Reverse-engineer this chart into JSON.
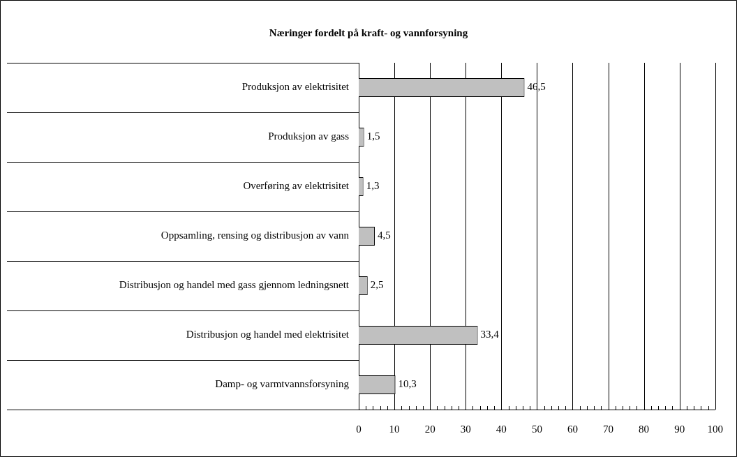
{
  "chart_data": {
    "type": "bar",
    "orientation": "horizontal",
    "title": "Næringer fordelt på kraft- og vannforsyning",
    "categories": [
      "Produksjon av elektrisitet",
      "Produksjon av gass",
      "Overføring av elektrisitet",
      "Oppsamling, rensing og distribusjon av vann",
      "Distribusjon og handel med gass gjennom ledningsnett",
      "Distribusjon og handel med elektrisitet",
      "Damp- og varmtvannsforsyning"
    ],
    "values": [
      46.5,
      1.5,
      1.3,
      4.5,
      2.5,
      33.4,
      10.3
    ],
    "value_labels": [
      "46,5",
      "1,5",
      "1,3",
      "4,5",
      "2,5",
      "33,4",
      "10,3"
    ],
    "color": "#c0c0c0",
    "xlim": [
      0,
      100
    ],
    "xticks": [
      0,
      {
        "value": 2,
        "label": null
      },
      {
        "value": 4,
        "label": null
      },
      {
        "value": 6,
        "label": null
      },
      {
        "value": 8,
        "label": null
      },
      10,
      {
        "value": 12,
        "label": null
      },
      {
        "value": 14,
        "label": null
      },
      {
        "value": 16,
        "label": null
      },
      {
        "value": 18,
        "label": null
      },
      20,
      {
        "value": 22,
        "label": null
      },
      {
        "value": 24,
        "label": null
      },
      {
        "value": 26,
        "label": null
      },
      {
        "value": 28,
        "label": null
      },
      30,
      {
        "value": 32,
        "label": null
      },
      {
        "value": 34,
        "label": null
      },
      {
        "value": 36,
        "label": null
      },
      {
        "value": 38,
        "label": null
      },
      40,
      {
        "value": 42,
        "label": null
      },
      {
        "value": 44,
        "label": null
      },
      {
        "value": 46,
        "label": null
      },
      {
        "value": 48,
        "label": null
      },
      50,
      {
        "value": 52,
        "label": null
      },
      {
        "value": 54,
        "label": null
      },
      {
        "value": 56,
        "label": null
      },
      {
        "value": 58,
        "label": null
      },
      60,
      {
        "value": 62,
        "label": null
      },
      {
        "value": 64,
        "label": null
      },
      {
        "value": 66,
        "label": null
      },
      {
        "value": 68,
        "label": null
      },
      70,
      {
        "value": 72,
        "label": null
      },
      {
        "value": 74,
        "label": null
      },
      {
        "value": 76,
        "label": null
      },
      {
        "value": 78,
        "label": null
      },
      80,
      {
        "value": 82,
        "label": null
      },
      {
        "value": 84,
        "label": null
      },
      {
        "value": 86,
        "label": null
      },
      {
        "value": 88,
        "label": null
      },
      90,
      {
        "value": 92,
        "label": null
      },
      {
        "value": 94,
        "label": null
      },
      {
        "value": 96,
        "label": null
      },
      {
        "value": 98,
        "label": null
      },
      100
    ],
    "grid": "x",
    "legend": false
  }
}
